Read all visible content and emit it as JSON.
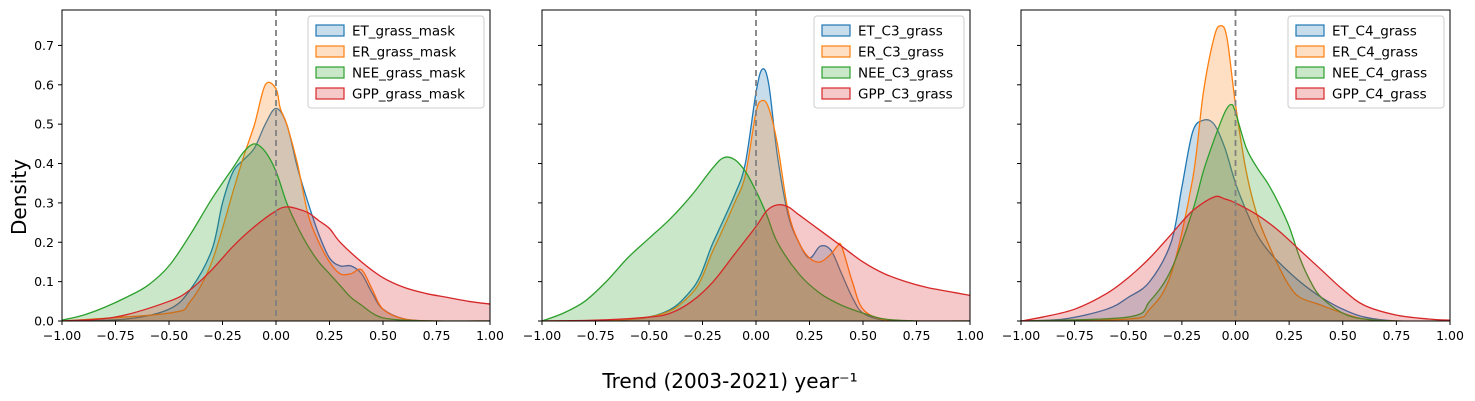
{
  "figure": {
    "ylabel": "Density",
    "xlabel": "Trend (2003-2021) year⁻¹"
  },
  "colors": {
    "ET": "#1f77b4",
    "ER": "#ff7f0e",
    "NEE": "#2ca02c",
    "GPP": "#d62728",
    "vline": "#808080"
  },
  "chart_data": [
    {
      "type": "area",
      "title": "",
      "xlim": [
        -1.0,
        1.0
      ],
      "ylim": [
        0,
        0.79
      ],
      "xticks": [
        -1.0,
        -0.75,
        -0.5,
        -0.25,
        0.0,
        0.25,
        0.5,
        0.75,
        1.0
      ],
      "xtick_labels": [
        "−1.00",
        "−0.75",
        "−0.50",
        "−0.25",
        "0.00",
        "0.25",
        "0.50",
        "0.75",
        "1.00"
      ],
      "yticks": [
        0.0,
        0.1,
        0.2,
        0.3,
        0.4,
        0.5,
        0.6,
        0.7
      ],
      "ytick_labels": [
        "0.0",
        "0.1",
        "0.2",
        "0.3",
        "0.4",
        "0.5",
        "0.6",
        "0.7"
      ],
      "vline_x": 0.0,
      "legend_position": "top-right",
      "series": [
        {
          "name": "ET_grass_mask",
          "color_key": "ET",
          "x": [
            -1.0,
            -0.7,
            -0.5,
            -0.4,
            -0.3,
            -0.25,
            -0.2,
            -0.15,
            -0.1,
            -0.05,
            0.0,
            0.05,
            0.1,
            0.15,
            0.2,
            0.25,
            0.3,
            0.35,
            0.4,
            0.45,
            0.5,
            0.6,
            0.75,
            1.0
          ],
          "y": [
            0.0,
            0.005,
            0.03,
            0.08,
            0.18,
            0.3,
            0.38,
            0.41,
            0.44,
            0.5,
            0.54,
            0.5,
            0.39,
            0.3,
            0.22,
            0.16,
            0.14,
            0.14,
            0.12,
            0.07,
            0.03,
            0.005,
            0.0,
            0.0
          ]
        },
        {
          "name": "ER_grass_mask",
          "color_key": "ER",
          "x": [
            -1.0,
            -0.5,
            -0.4,
            -0.3,
            -0.2,
            -0.15,
            -0.1,
            -0.05,
            0.0,
            0.02,
            0.05,
            0.1,
            0.15,
            0.2,
            0.25,
            0.3,
            0.35,
            0.4,
            0.45,
            0.5,
            0.6,
            0.75,
            1.0
          ],
          "y": [
            0.0,
            0.02,
            0.05,
            0.15,
            0.33,
            0.42,
            0.5,
            0.6,
            0.59,
            0.54,
            0.5,
            0.4,
            0.27,
            0.2,
            0.15,
            0.12,
            0.12,
            0.13,
            0.08,
            0.03,
            0.005,
            0.0,
            0.0
          ]
        },
        {
          "name": "NEE_grass_mask",
          "color_key": "NEE",
          "x": [
            -1.0,
            -0.9,
            -0.8,
            -0.7,
            -0.6,
            -0.5,
            -0.4,
            -0.3,
            -0.2,
            -0.15,
            -0.1,
            -0.05,
            0.0,
            0.05,
            0.1,
            0.15,
            0.2,
            0.25,
            0.3,
            0.35,
            0.4,
            0.45,
            0.5,
            0.6,
            0.75,
            1.0
          ],
          "y": [
            0.002,
            0.015,
            0.035,
            0.06,
            0.09,
            0.14,
            0.22,
            0.31,
            0.39,
            0.43,
            0.45,
            0.43,
            0.38,
            0.3,
            0.24,
            0.19,
            0.15,
            0.12,
            0.09,
            0.06,
            0.04,
            0.02,
            0.008,
            0.002,
            0.0,
            0.0
          ]
        },
        {
          "name": "GPP_grass_mask",
          "color_key": "GPP",
          "x": [
            -1.0,
            -0.75,
            -0.5,
            -0.4,
            -0.3,
            -0.2,
            -0.1,
            0.0,
            0.05,
            0.1,
            0.15,
            0.2,
            0.25,
            0.3,
            0.4,
            0.5,
            0.6,
            0.7,
            0.8,
            0.9,
            1.0
          ],
          "y": [
            0.0,
            0.01,
            0.05,
            0.08,
            0.13,
            0.19,
            0.24,
            0.28,
            0.29,
            0.285,
            0.275,
            0.255,
            0.235,
            0.2,
            0.15,
            0.11,
            0.085,
            0.07,
            0.06,
            0.05,
            0.043
          ]
        }
      ]
    },
    {
      "type": "area",
      "title": "",
      "xlim": [
        -1.0,
        1.0
      ],
      "ylim": [
        0,
        0.79
      ],
      "xticks": [
        -1.0,
        -0.75,
        -0.5,
        -0.25,
        0.0,
        0.25,
        0.5,
        0.75,
        1.0
      ],
      "xtick_labels": [
        "−1.00",
        "−0.75",
        "−0.50",
        "−0.25",
        "0.00",
        "0.25",
        "0.50",
        "0.75",
        "1.00"
      ],
      "yticks": [
        0.0,
        0.1,
        0.2,
        0.3,
        0.4,
        0.5,
        0.6,
        0.7
      ],
      "ytick_labels": [],
      "vline_x": 0.0,
      "legend_position": "top-right",
      "series": [
        {
          "name": "ET_C3_grass",
          "color_key": "ET",
          "x": [
            -1.0,
            -0.5,
            -0.3,
            -0.2,
            -0.1,
            -0.05,
            0.0,
            0.03,
            0.06,
            0.1,
            0.15,
            0.2,
            0.25,
            0.3,
            0.35,
            0.4,
            0.45,
            0.5,
            0.6,
            0.75,
            1.0
          ],
          "y": [
            0.0,
            0.01,
            0.08,
            0.2,
            0.32,
            0.4,
            0.58,
            0.64,
            0.6,
            0.42,
            0.27,
            0.2,
            0.16,
            0.19,
            0.18,
            0.12,
            0.06,
            0.02,
            0.002,
            0.0,
            0.0
          ]
        },
        {
          "name": "ER_C3_grass",
          "color_key": "ER",
          "x": [
            -1.0,
            -0.5,
            -0.3,
            -0.2,
            -0.1,
            -0.05,
            0.0,
            0.03,
            0.06,
            0.1,
            0.15,
            0.2,
            0.25,
            0.3,
            0.35,
            0.38,
            0.4,
            0.45,
            0.5,
            0.6,
            0.75,
            1.0
          ],
          "y": [
            0.0,
            0.01,
            0.07,
            0.18,
            0.3,
            0.37,
            0.53,
            0.56,
            0.54,
            0.45,
            0.28,
            0.2,
            0.16,
            0.15,
            0.17,
            0.19,
            0.19,
            0.1,
            0.03,
            0.003,
            0.0,
            0.0
          ]
        },
        {
          "name": "NEE_C3_grass",
          "color_key": "NEE",
          "x": [
            -1.0,
            -0.9,
            -0.8,
            -0.7,
            -0.6,
            -0.5,
            -0.4,
            -0.3,
            -0.2,
            -0.15,
            -0.1,
            -0.05,
            0.0,
            0.05,
            0.1,
            0.2,
            0.3,
            0.4,
            0.5,
            0.6,
            0.75,
            1.0
          ],
          "y": [
            0.0,
            0.02,
            0.05,
            0.1,
            0.16,
            0.21,
            0.26,
            0.32,
            0.39,
            0.415,
            0.41,
            0.38,
            0.33,
            0.27,
            0.2,
            0.12,
            0.07,
            0.04,
            0.02,
            0.005,
            0.0,
            0.0
          ]
        },
        {
          "name": "GPP_C3_grass",
          "color_key": "GPP",
          "x": [
            -1.0,
            -0.75,
            -0.5,
            -0.4,
            -0.3,
            -0.2,
            -0.1,
            0.0,
            0.05,
            0.1,
            0.15,
            0.2,
            0.3,
            0.4,
            0.5,
            0.6,
            0.7,
            0.8,
            0.9,
            1.0
          ],
          "y": [
            0.0,
            0.002,
            0.01,
            0.02,
            0.05,
            0.1,
            0.17,
            0.24,
            0.28,
            0.295,
            0.29,
            0.27,
            0.23,
            0.19,
            0.15,
            0.12,
            0.1,
            0.085,
            0.075,
            0.065
          ]
        }
      ]
    },
    {
      "type": "area",
      "title": "",
      "xlim": [
        -1.0,
        1.0
      ],
      "ylim": [
        0,
        0.79
      ],
      "xticks": [
        -1.0,
        -0.75,
        -0.5,
        -0.25,
        0.0,
        0.25,
        0.5,
        0.75,
        1.0
      ],
      "xtick_labels": [
        "−1.00",
        "−0.75",
        "−0.50",
        "−0.25",
        "0.00",
        "0.25",
        "0.50",
        "0.75",
        "1.00"
      ],
      "yticks": [
        0.0,
        0.1,
        0.2,
        0.3,
        0.4,
        0.5,
        0.6,
        0.7
      ],
      "ytick_labels": [],
      "vline_x": 0.0,
      "legend_position": "top-right",
      "series": [
        {
          "name": "ET_C4_grass",
          "color_key": "ET",
          "x": [
            -1.0,
            -0.8,
            -0.6,
            -0.5,
            -0.4,
            -0.3,
            -0.25,
            -0.2,
            -0.15,
            -0.1,
            -0.05,
            0.0,
            0.05,
            0.1,
            0.15,
            0.2,
            0.3,
            0.4,
            0.5,
            0.6,
            0.75,
            1.0
          ],
          "y": [
            0.0,
            0.005,
            0.03,
            0.06,
            0.1,
            0.2,
            0.34,
            0.48,
            0.51,
            0.5,
            0.44,
            0.35,
            0.28,
            0.22,
            0.18,
            0.15,
            0.1,
            0.06,
            0.03,
            0.01,
            0.0,
            0.0
          ]
        },
        {
          "name": "ER_C4_grass",
          "color_key": "ER",
          "x": [
            -1.0,
            -0.5,
            -0.4,
            -0.3,
            -0.2,
            -0.15,
            -0.1,
            -0.07,
            -0.04,
            0.0,
            0.05,
            0.1,
            0.15,
            0.2,
            0.25,
            0.3,
            0.4,
            0.5,
            0.6,
            0.75,
            1.0
          ],
          "y": [
            0.0,
            0.005,
            0.03,
            0.12,
            0.36,
            0.58,
            0.72,
            0.75,
            0.72,
            0.55,
            0.38,
            0.27,
            0.2,
            0.14,
            0.09,
            0.06,
            0.04,
            0.02,
            0.005,
            0.0,
            0.0
          ]
        },
        {
          "name": "NEE_C4_grass",
          "color_key": "NEE",
          "x": [
            -1.0,
            -0.5,
            -0.4,
            -0.3,
            -0.2,
            -0.15,
            -0.1,
            -0.05,
            -0.02,
            0.0,
            0.05,
            0.1,
            0.15,
            0.2,
            0.25,
            0.3,
            0.35,
            0.4,
            0.5,
            0.6,
            0.75,
            1.0
          ],
          "y": [
            0.0,
            0.01,
            0.05,
            0.13,
            0.28,
            0.38,
            0.46,
            0.53,
            0.55,
            0.53,
            0.44,
            0.39,
            0.35,
            0.3,
            0.24,
            0.16,
            0.1,
            0.06,
            0.02,
            0.005,
            0.0,
            0.0
          ]
        },
        {
          "name": "GPP_C4_grass",
          "color_key": "GPP",
          "x": [
            -1.0,
            -0.9,
            -0.75,
            -0.6,
            -0.5,
            -0.4,
            -0.3,
            -0.2,
            -0.1,
            -0.05,
            0.0,
            0.1,
            0.2,
            0.3,
            0.4,
            0.5,
            0.6,
            0.75,
            0.9,
            1.0
          ],
          "y": [
            0.0,
            0.01,
            0.03,
            0.07,
            0.11,
            0.16,
            0.22,
            0.28,
            0.315,
            0.31,
            0.3,
            0.27,
            0.23,
            0.18,
            0.13,
            0.08,
            0.04,
            0.015,
            0.005,
            0.002
          ]
        }
      ]
    }
  ]
}
